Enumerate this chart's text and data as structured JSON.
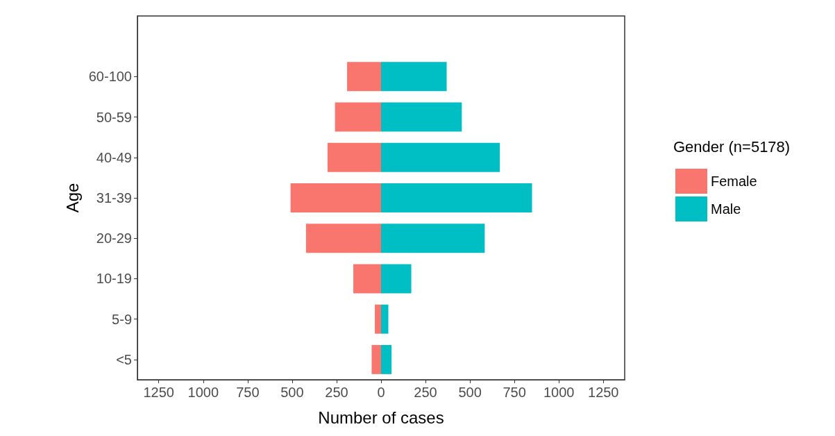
{
  "chart_data": {
    "type": "bar",
    "orientation": "horizontal",
    "stacked": true,
    "xlabel": "Number of cases",
    "ylabel": "Age",
    "legend_title": "Gender (n=5178)",
    "legend": "right",
    "categories": [
      null,
      "60-100",
      "50-59",
      "40-49",
      "31-39",
      "20-29",
      "10-19",
      "5-9",
      "<5"
    ],
    "series": [
      {
        "name": "Female",
        "color": "#f8766d",
        "values": [
          null,
          -191,
          -259,
          -301,
          -509,
          -422,
          -156,
          -35,
          -53
        ]
      },
      {
        "name": "Male",
        "color": "#00bfc4",
        "values": [
          null,
          369,
          454,
          668,
          849,
          583,
          170,
          41,
          59
        ]
      }
    ],
    "xlim": [
      -1370,
      1370
    ],
    "xticks": [
      {
        "value": -1250,
        "label": "1250"
      },
      {
        "value": -1000,
        "label": "1000"
      },
      {
        "value": -750,
        "label": "750"
      },
      {
        "value": -500,
        "label": "500"
      },
      {
        "value": -250,
        "label": "250"
      },
      0,
      250,
      500,
      750,
      1000,
      1250
    ],
    "grid": false
  }
}
